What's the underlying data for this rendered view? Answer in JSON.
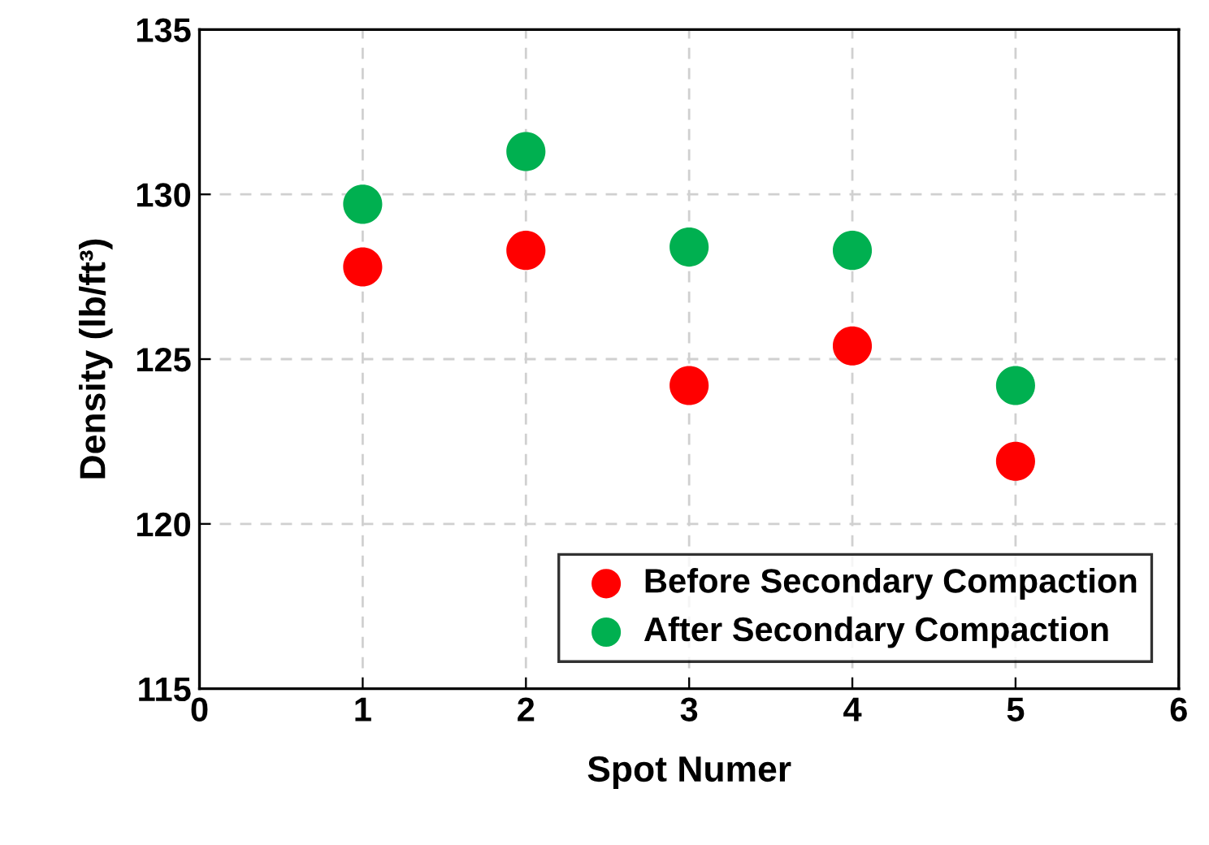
{
  "chart_data": {
    "type": "scatter",
    "xlabel": "Spot Numer",
    "ylabel": "Density (lb/ft³)",
    "x": [
      1,
      2,
      3,
      4,
      5
    ],
    "series": [
      {
        "name": "Before Secondary Compaction",
        "color": "#ff0000",
        "values": [
          127.8,
          128.3,
          124.2,
          125.4,
          121.9
        ]
      },
      {
        "name": "After Secondary Compaction",
        "color": "#00b050",
        "values": [
          129.7,
          131.3,
          128.4,
          128.3,
          124.2
        ]
      }
    ],
    "xlim": [
      0,
      6
    ],
    "xticks": [
      0,
      1,
      2,
      3,
      4,
      5,
      6
    ],
    "ylim": [
      115,
      135
    ],
    "yticks": [
      115,
      120,
      125,
      130,
      135
    ],
    "grid": true,
    "legend": "bottom right",
    "marker": "circle"
  }
}
